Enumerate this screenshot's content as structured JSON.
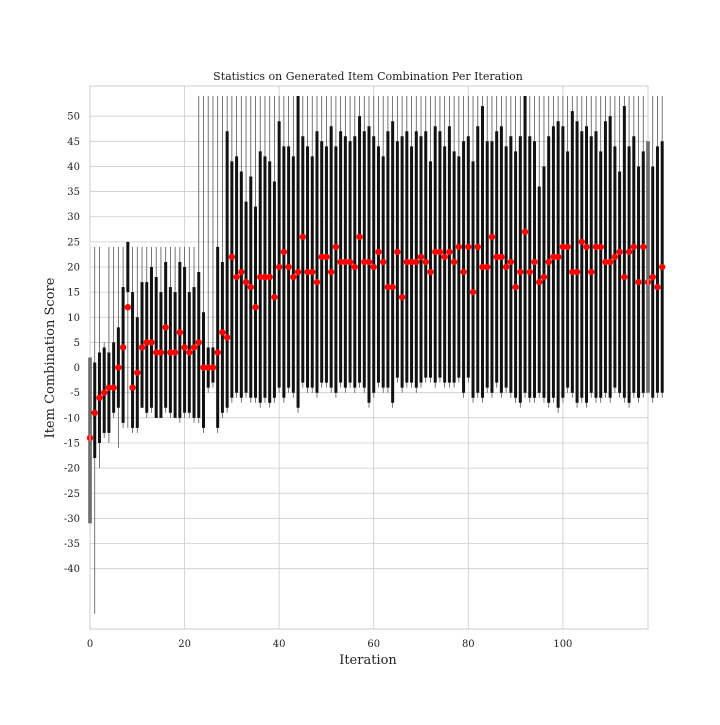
{
  "chart_data": {
    "type": "boxplot",
    "title": "Statistics on Generated Item Combination Per Iteration",
    "xlabel": "Iteration",
    "ylabel": "Item Combination Score",
    "xlim": [
      0,
      118
    ],
    "ylim": [
      -52,
      56
    ],
    "x_ticks": [
      0,
      20,
      40,
      60,
      80,
      100
    ],
    "y_ticks": [
      50,
      45,
      40,
      35,
      30,
      25,
      20,
      15,
      10,
      5,
      0,
      -5,
      -10,
      -15,
      -20,
      -25,
      -30,
      -35,
      -40
    ],
    "grid": true,
    "box_color": "#111111",
    "whisker_color": "#555555",
    "mean_color": "#ff0000",
    "means": [
      -14,
      -9,
      -6,
      -5,
      -4,
      -4,
      0,
      4,
      12,
      -4,
      -1,
      4,
      5,
      5,
      3,
      3,
      8,
      3,
      3,
      7,
      4,
      3,
      4,
      5,
      0,
      0,
      0,
      3,
      7,
      6,
      22,
      18,
      19,
      17,
      16,
      12,
      18,
      18,
      18,
      14,
      20,
      23,
      20,
      18,
      19,
      26,
      19,
      19,
      17,
      22,
      22,
      19,
      24,
      21,
      21,
      21,
      20,
      26,
      21,
      21,
      20,
      23,
      21,
      16,
      16,
      23,
      14,
      21,
      21,
      21,
      22,
      21,
      19,
      23,
      23,
      22,
      23,
      21,
      24,
      19,
      24,
      15,
      24,
      20,
      20,
      26,
      22,
      22,
      20,
      21,
      16,
      19,
      27,
      19,
      21,
      17,
      18,
      21,
      22,
      22,
      24,
      24,
      19,
      19,
      25,
      24,
      19,
      24,
      24,
      21,
      21,
      22,
      23,
      18,
      23,
      24,
      17,
      24,
      17,
      18,
      16,
      20
    ],
    "box_lows": [
      -31,
      -18,
      -15,
      -13,
      -13,
      -9,
      -8,
      -11,
      15,
      -12,
      -12,
      -8,
      -9,
      -8,
      -10,
      -10,
      -8,
      -9,
      -10,
      -10,
      -9,
      -9,
      -10,
      -10,
      -12,
      -4,
      -3,
      -12,
      -9,
      -8,
      -6,
      -5,
      -6,
      -5,
      -6,
      -6,
      -7,
      -6,
      -7,
      -6,
      -4,
      -6,
      -4,
      -5,
      -8,
      -3,
      -4,
      -4,
      -5,
      -3,
      -3,
      -4,
      -5,
      -3,
      -4,
      -3,
      -4,
      -3,
      -4,
      -7,
      -5,
      -3,
      -4,
      -4,
      -7,
      -2,
      -4,
      -3,
      -3,
      -4,
      -3,
      -2,
      -2,
      -3,
      -2,
      -3,
      -3,
      -3,
      -2,
      -5,
      -2,
      -6,
      -5,
      -6,
      -4,
      -5,
      -3,
      -5,
      -4,
      -5,
      -6,
      -7,
      -5,
      -6,
      -6,
      -5,
      -6,
      -7,
      -6,
      -8,
      -6,
      -4,
      -5,
      -7,
      -6,
      -7,
      -5,
      -6,
      -6,
      -5,
      -6,
      -4,
      -5,
      -6,
      -7,
      -5,
      -6,
      -5,
      -5,
      -6,
      -5,
      -5
    ],
    "box_highs": [
      2,
      1,
      3,
      4,
      3,
      5,
      8,
      16,
      25,
      15,
      10,
      17,
      17,
      20,
      18,
      15,
      21,
      16,
      15,
      21,
      20,
      15,
      16,
      19,
      11,
      4,
      4,
      24,
      21,
      47,
      41,
      42,
      39,
      33,
      38,
      32,
      43,
      42,
      41,
      37,
      49,
      44,
      44,
      42,
      54,
      46,
      44,
      42,
      47,
      45,
      44,
      48,
      44,
      47,
      46,
      45,
      46,
      50,
      47,
      48,
      46,
      44,
      42,
      47,
      49,
      45,
      46,
      47,
      44,
      47,
      46,
      47,
      41,
      48,
      47,
      44,
      48,
      43,
      42,
      45,
      46,
      41,
      48,
      52,
      45,
      45,
      47,
      48,
      44,
      46,
      43,
      46,
      54,
      46,
      45,
      36,
      40,
      46,
      48,
      49,
      48,
      43,
      51,
      49,
      47,
      48,
      46,
      47,
      43,
      49,
      50,
      44,
      39,
      52,
      44,
      46,
      40,
      43,
      45,
      40,
      44,
      45
    ],
    "whisker_lows": [
      -36,
      -49,
      -20,
      -14,
      -15,
      -10,
      -16,
      -12,
      -12,
      -13,
      -13,
      -8,
      -10,
      -9,
      -10,
      -10,
      -9,
      -10,
      -10,
      -11,
      -10,
      -10,
      -11,
      -11,
      -13,
      -5,
      -4,
      -13,
      -10,
      -9,
      -7,
      -6,
      -7,
      -6,
      -7,
      -7,
      -8,
      -7,
      -8,
      -7,
      -5,
      -7,
      -5,
      -6,
      -9,
      -4,
      -5,
      -5,
      -6,
      -4,
      -4,
      -5,
      -6,
      -4,
      -5,
      -4,
      -5,
      -4,
      -5,
      -8,
      -6,
      -4,
      -5,
      -5,
      -8,
      -3,
      -5,
      -4,
      -4,
      -5,
      -4,
      -3,
      -3,
      -4,
      -3,
      -4,
      -4,
      -4,
      -3,
      -6,
      -3,
      -7,
      -6,
      -7,
      -5,
      -6,
      -4,
      -6,
      -5,
      -6,
      -7,
      -8,
      -6,
      -7,
      -7,
      -6,
      -7,
      -8,
      -7,
      -9,
      -7,
      -5,
      -6,
      -8,
      -7,
      -8,
      -6,
      -7,
      -7,
      -6,
      -7,
      -5,
      -6,
      -7,
      -8,
      -6,
      -7,
      -6,
      -6,
      -7,
      -6,
      -6
    ],
    "whisker_highs": [
      3,
      24,
      24,
      5,
      24,
      24,
      24,
      24,
      25,
      24,
      24,
      24,
      24,
      24,
      24,
      24,
      24,
      24,
      24,
      24,
      24,
      24,
      24,
      54,
      54,
      54,
      54,
      54,
      54,
      54,
      54,
      54,
      54,
      54,
      54,
      54,
      54,
      54,
      54,
      54,
      54,
      54,
      54,
      54,
      54,
      54,
      54,
      54,
      54,
      54,
      54,
      54,
      54,
      54,
      54,
      54,
      54,
      54,
      54,
      54,
      54,
      54,
      54,
      54,
      54,
      54,
      54,
      54,
      54,
      54,
      54,
      54,
      54,
      54,
      54,
      54,
      54,
      54,
      54,
      54,
      54,
      54,
      54,
      54,
      54,
      54,
      54,
      54,
      54,
      54,
      54,
      54,
      54,
      54,
      54,
      54,
      54,
      54,
      54,
      54,
      54,
      54,
      54,
      54,
      54,
      54,
      54,
      54,
      54,
      54,
      54,
      54,
      54,
      54,
      54,
      54,
      54,
      54,
      54,
      54,
      54,
      54
    ]
  }
}
